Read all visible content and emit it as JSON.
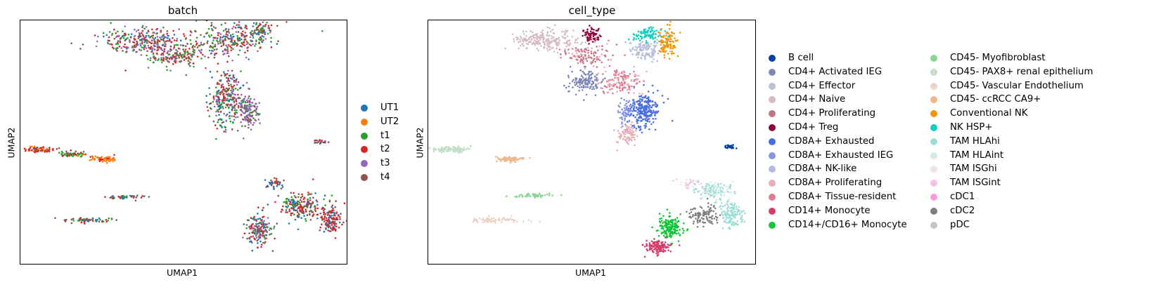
{
  "chart_data": [
    {
      "type": "scatter",
      "title": "batch",
      "xlabel": "UMAP1",
      "ylabel": "UMAP2",
      "grid": false,
      "legend_position": "right",
      "series": [
        {
          "name": "UT1",
          "color": "#1f77b4"
        },
        {
          "name": "UT2",
          "color": "#ff7f0e"
        },
        {
          "name": "t1",
          "color": "#2ca02c"
        },
        {
          "name": "t2",
          "color": "#d62728"
        },
        {
          "name": "t3",
          "color": "#9467bd"
        },
        {
          "name": "t4",
          "color": "#8c564b"
        }
      ],
      "clusters": [
        {
          "cx": 0.37,
          "cy": 0.08,
          "rx": 0.13,
          "ry": 0.05,
          "n": 260,
          "mix": [
            "t4",
            "t2",
            "t1",
            "t3",
            "UT1"
          ]
        },
        {
          "cx": 0.64,
          "cy": 0.08,
          "rx": 0.12,
          "ry": 0.07,
          "n": 260,
          "mix": [
            "t4",
            "t1",
            "t2",
            "t3",
            "UT1"
          ]
        },
        {
          "cx": 0.74,
          "cy": 0.04,
          "rx": 0.03,
          "ry": 0.04,
          "n": 60,
          "mix": [
            "t4",
            "t1",
            "t2",
            "UT1"
          ]
        },
        {
          "cx": 0.48,
          "cy": 0.14,
          "rx": 0.1,
          "ry": 0.05,
          "n": 200,
          "mix": [
            "t4",
            "t2",
            "t1",
            "t3"
          ]
        },
        {
          "cx": 0.63,
          "cy": 0.33,
          "rx": 0.05,
          "ry": 0.12,
          "n": 280,
          "mix": [
            "t1",
            "t3",
            "t4",
            "t2",
            "UT1"
          ]
        },
        {
          "cx": 0.7,
          "cy": 0.37,
          "rx": 0.03,
          "ry": 0.07,
          "n": 150,
          "mix": [
            "t3",
            "t3",
            "t4",
            "t1"
          ]
        },
        {
          "cx": 0.06,
          "cy": 0.53,
          "rx": 0.05,
          "ry": 0.012,
          "n": 80,
          "mix": [
            "t2",
            "t2",
            "t4",
            "UT2"
          ]
        },
        {
          "cx": 0.16,
          "cy": 0.55,
          "rx": 0.05,
          "ry": 0.012,
          "n": 60,
          "mix": [
            "t2",
            "t4",
            "UT2",
            "t1"
          ]
        },
        {
          "cx": 0.26,
          "cy": 0.57,
          "rx": 0.04,
          "ry": 0.012,
          "n": 70,
          "mix": [
            "UT2",
            "UT2",
            "UT2",
            "t2"
          ]
        },
        {
          "cx": 0.92,
          "cy": 0.5,
          "rx": 0.02,
          "ry": 0.007,
          "n": 20,
          "mix": [
            "t2",
            "t4",
            "UT1"
          ]
        },
        {
          "cx": 0.2,
          "cy": 0.82,
          "rx": 0.08,
          "ry": 0.01,
          "n": 60,
          "mix": [
            "UT1",
            "t4",
            "t1",
            "t2"
          ]
        },
        {
          "cx": 0.33,
          "cy": 0.725,
          "rx": 0.06,
          "ry": 0.008,
          "n": 40,
          "mix": [
            "UT1",
            "t1",
            "t4",
            "t2"
          ]
        },
        {
          "cx": 0.78,
          "cy": 0.67,
          "rx": 0.03,
          "ry": 0.02,
          "n": 40,
          "mix": [
            "UT1",
            "t2",
            "t4"
          ]
        },
        {
          "cx": 0.86,
          "cy": 0.76,
          "rx": 0.06,
          "ry": 0.06,
          "n": 200,
          "mix": [
            "t2",
            "t4",
            "t2",
            "UT1",
            "t1"
          ]
        },
        {
          "cx": 0.95,
          "cy": 0.82,
          "rx": 0.035,
          "ry": 0.06,
          "n": 140,
          "mix": [
            "t2",
            "t2",
            "t4",
            "UT1"
          ]
        },
        {
          "cx": 0.73,
          "cy": 0.86,
          "rx": 0.04,
          "ry": 0.07,
          "n": 180,
          "mix": [
            "t4",
            "t2",
            "UT1",
            "t1",
            "t3"
          ]
        }
      ]
    },
    {
      "type": "scatter",
      "title": "cell_type",
      "xlabel": "UMAP1",
      "ylabel": "UMAP2",
      "grid": false,
      "legend_position": "right",
      "series": [
        {
          "name": "B cell",
          "color": "#023fa5"
        },
        {
          "name": "CD4+ Activated IEG",
          "color": "#7d87b9"
        },
        {
          "name": "CD4+ Effector",
          "color": "#bec1d4"
        },
        {
          "name": "CD4+ Naive",
          "color": "#d6bcc0"
        },
        {
          "name": "CD4+ Proliferating",
          "color": "#bb7784"
        },
        {
          "name": "CD4+ Treg",
          "color": "#8e063b"
        },
        {
          "name": "CD8A+ Exhausted",
          "color": "#4a6fe3"
        },
        {
          "name": "CD8A+ Exhausted IEG",
          "color": "#8595e1"
        },
        {
          "name": "CD8A+ NK-like",
          "color": "#b5bbe3"
        },
        {
          "name": "CD8A+ Proliferating",
          "color": "#e6afb9"
        },
        {
          "name": "CD8A+ Tissue-resident",
          "color": "#e07b91"
        },
        {
          "name": "CD14+ Monocyte",
          "color": "#d33f6a"
        },
        {
          "name": "CD14+/CD16+ Monocyte",
          "color": "#11c638"
        },
        {
          "name": "CD45- Myofibroblast",
          "color": "#8dd593"
        },
        {
          "name": "CD45- PAX8+ renal epithelium",
          "color": "#c6dec7"
        },
        {
          "name": "CD45- Vascular Endothelium",
          "color": "#ead3c6"
        },
        {
          "name": "CD45- ccRCC CA9+",
          "color": "#f0b98d"
        },
        {
          "name": "Conventional NK",
          "color": "#ef9708"
        },
        {
          "name": "NK HSP+",
          "color": "#0fcfc0"
        },
        {
          "name": "TAM HLAhi",
          "color": "#9cded6"
        },
        {
          "name": "TAM HLAint",
          "color": "#d5eae7"
        },
        {
          "name": "TAM ISGhi",
          "color": "#f3e1eb"
        },
        {
          "name": "TAM ISGint",
          "color": "#f6c4e1"
        },
        {
          "name": "cDC1",
          "color": "#f79cd4"
        },
        {
          "name": "cDC2",
          "color": "#7f7f7f"
        },
        {
          "name": "pDC",
          "color": "#c7c7c7"
        }
      ],
      "clusters": [
        {
          "cx": 0.36,
          "cy": 0.08,
          "rx": 0.11,
          "ry": 0.04,
          "n": 220,
          "mix": [
            "CD4+ Naive"
          ]
        },
        {
          "cx": 0.48,
          "cy": 0.14,
          "rx": 0.08,
          "ry": 0.04,
          "n": 120,
          "mix": [
            "CD4+ Proliferating",
            "CD8A+ Tissue-resident",
            "CD8A+ Proliferating"
          ]
        },
        {
          "cx": 0.5,
          "cy": 0.06,
          "rx": 0.025,
          "ry": 0.03,
          "n": 70,
          "mix": [
            "CD4+ Treg"
          ]
        },
        {
          "cx": 0.48,
          "cy": 0.25,
          "rx": 0.05,
          "ry": 0.05,
          "n": 140,
          "mix": [
            "CD4+ Activated IEG"
          ]
        },
        {
          "cx": 0.59,
          "cy": 0.25,
          "rx": 0.06,
          "ry": 0.05,
          "n": 150,
          "mix": [
            "CD8A+ Tissue-resident",
            "CD8A+ Proliferating"
          ]
        },
        {
          "cx": 0.67,
          "cy": 0.12,
          "rx": 0.05,
          "ry": 0.04,
          "n": 120,
          "mix": [
            "CD8A+ NK-like",
            "CD4+ Effector"
          ]
        },
        {
          "cx": 0.67,
          "cy": 0.06,
          "rx": 0.04,
          "ry": 0.03,
          "n": 90,
          "mix": [
            "NK HSP+"
          ]
        },
        {
          "cx": 0.73,
          "cy": 0.09,
          "rx": 0.03,
          "ry": 0.05,
          "n": 110,
          "mix": [
            "Conventional NK"
          ]
        },
        {
          "cx": 0.66,
          "cy": 0.37,
          "rx": 0.045,
          "ry": 0.07,
          "n": 260,
          "mix": [
            "CD8A+ Exhausted"
          ]
        },
        {
          "cx": 0.6,
          "cy": 0.37,
          "rx": 0.02,
          "ry": 0.05,
          "n": 60,
          "mix": [
            "CD8A+ Exhausted IEG"
          ]
        },
        {
          "cx": 0.61,
          "cy": 0.47,
          "rx": 0.03,
          "ry": 0.04,
          "n": 90,
          "mix": [
            "CD8A+ Proliferating"
          ]
        },
        {
          "cx": 0.07,
          "cy": 0.53,
          "rx": 0.06,
          "ry": 0.012,
          "n": 110,
          "mix": [
            "CD45- PAX8+ renal epithelium"
          ]
        },
        {
          "cx": 0.25,
          "cy": 0.57,
          "rx": 0.05,
          "ry": 0.012,
          "n": 80,
          "mix": [
            "CD45- ccRCC CA9+"
          ]
        },
        {
          "cx": 0.33,
          "cy": 0.72,
          "rx": 0.06,
          "ry": 0.008,
          "n": 50,
          "mix": [
            "CD45- Myofibroblast"
          ]
        },
        {
          "cx": 0.2,
          "cy": 0.82,
          "rx": 0.08,
          "ry": 0.012,
          "n": 80,
          "mix": [
            "CD45- Vascular Endothelium"
          ]
        },
        {
          "cx": 0.92,
          "cy": 0.52,
          "rx": 0.02,
          "ry": 0.007,
          "n": 35,
          "mix": [
            "B cell"
          ]
        },
        {
          "cx": 0.8,
          "cy": 0.67,
          "rx": 0.035,
          "ry": 0.02,
          "n": 40,
          "mix": [
            "TAM ISGint",
            "TAM ISGhi"
          ]
        },
        {
          "cx": 0.87,
          "cy": 0.7,
          "rx": 0.06,
          "ry": 0.04,
          "n": 140,
          "mix": [
            "TAM HLAint",
            "TAM HLAhi"
          ]
        },
        {
          "cx": 0.93,
          "cy": 0.8,
          "rx": 0.04,
          "ry": 0.06,
          "n": 130,
          "mix": [
            "TAM HLAhi"
          ]
        },
        {
          "cx": 0.84,
          "cy": 0.8,
          "rx": 0.05,
          "ry": 0.04,
          "n": 110,
          "mix": [
            "cDC2"
          ]
        },
        {
          "cx": 0.74,
          "cy": 0.85,
          "rx": 0.04,
          "ry": 0.05,
          "n": 180,
          "mix": [
            "CD14+/CD16+ Monocyte"
          ]
        },
        {
          "cx": 0.7,
          "cy": 0.93,
          "rx": 0.04,
          "ry": 0.025,
          "n": 130,
          "mix": [
            "CD14+ Monocyte"
          ]
        }
      ]
    }
  ]
}
